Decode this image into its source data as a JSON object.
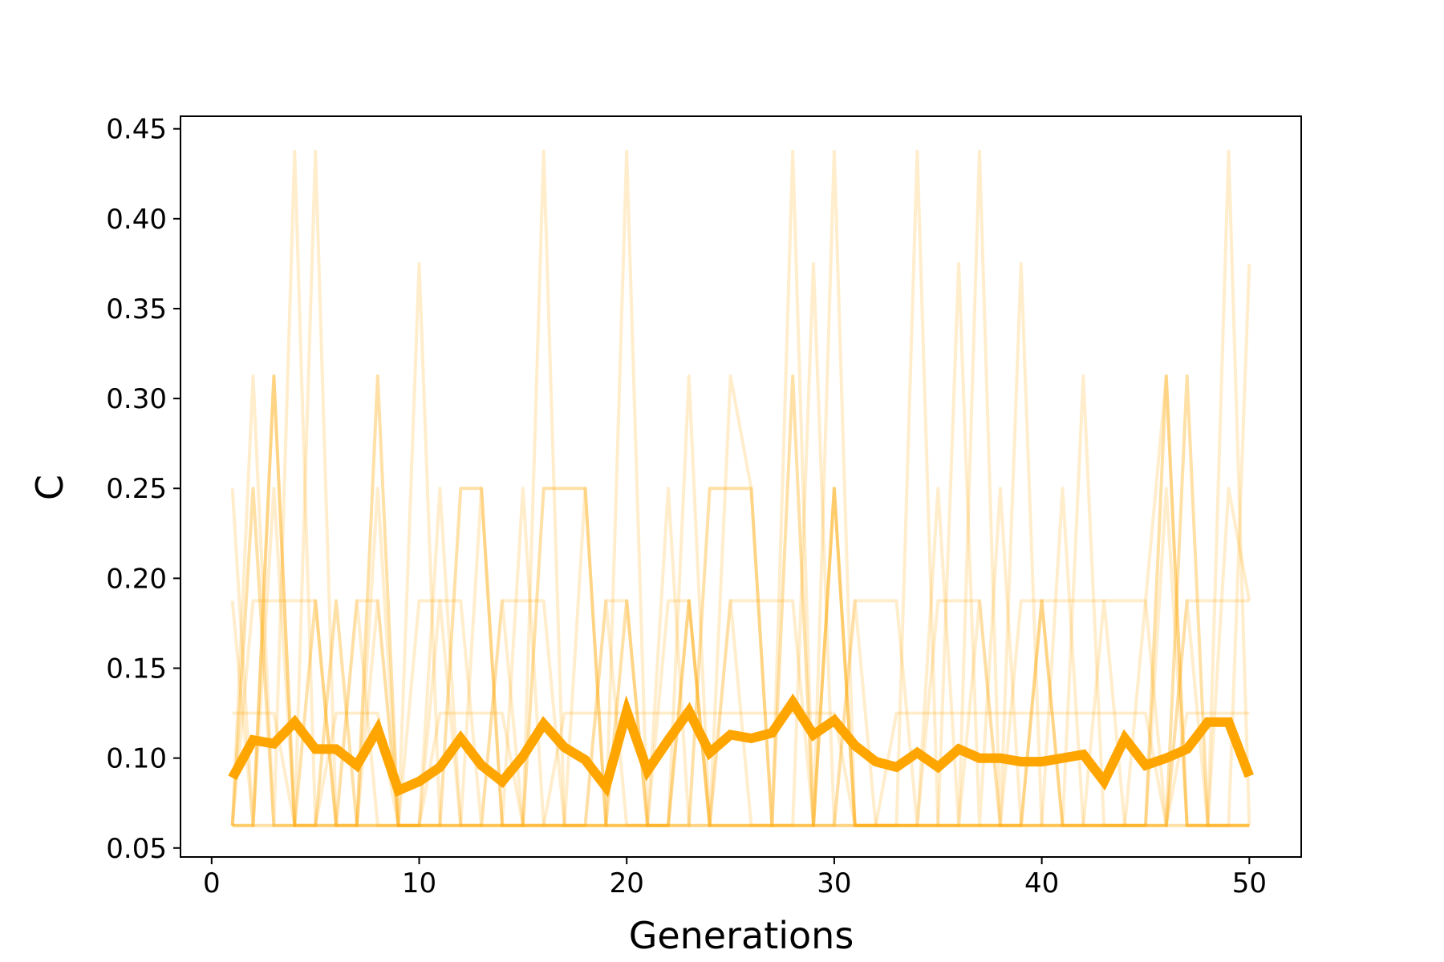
{
  "chart_data": {
    "type": "line",
    "title": "",
    "xlabel": "Generations",
    "ylabel": "C",
    "xlim": [
      -1.5,
      52.5
    ],
    "ylim": [
      0.045,
      0.457
    ],
    "x_ticks": [
      0,
      10,
      20,
      30,
      40,
      50
    ],
    "x_tick_labels": [
      "0",
      "10",
      "20",
      "30",
      "40",
      "50"
    ],
    "y_ticks": [
      0.05,
      0.1,
      0.15,
      0.2,
      0.25,
      0.3,
      0.35,
      0.4,
      0.45
    ],
    "y_tick_labels": [
      "0.05",
      "0.10",
      "0.15",
      "0.20",
      "0.25",
      "0.30",
      "0.35",
      "0.40",
      "0.45"
    ],
    "grid": false,
    "legend": false,
    "colors": {
      "series": "#ffa500",
      "axes": "#000000",
      "background": "#ffffff"
    },
    "x": [
      1,
      2,
      3,
      4,
      5,
      6,
      7,
      8,
      9,
      10,
      11,
      12,
      13,
      14,
      15,
      16,
      17,
      18,
      19,
      20,
      21,
      22,
      23,
      24,
      25,
      26,
      27,
      28,
      29,
      30,
      31,
      32,
      33,
      34,
      35,
      36,
      37,
      38,
      39,
      40,
      41,
      42,
      43,
      44,
      45,
      46,
      47,
      48,
      49,
      50
    ],
    "mean_series": {
      "values": [
        0.089,
        0.11,
        0.108,
        0.12,
        0.105,
        0.105,
        0.096,
        0.116,
        0.082,
        0.087,
        0.095,
        0.111,
        0.096,
        0.087,
        0.101,
        0.119,
        0.106,
        0.099,
        0.084,
        0.126,
        0.093,
        0.11,
        0.126,
        0.103,
        0.113,
        0.111,
        0.114,
        0.131,
        0.113,
        0.121,
        0.107,
        0.098,
        0.095,
        0.103,
        0.095,
        0.105,
        0.1,
        0.1,
        0.098,
        0.098,
        0.1,
        0.102,
        0.087,
        0.111,
        0.096,
        0.1,
        0.105,
        0.12,
        0.12,
        0.09
      ],
      "color": "#ffa500",
      "opacity": 1.0
    },
    "series": [
      {
        "opacity": 0.2,
        "values": [
          0.25,
          0.0625,
          0.3125,
          0.0625,
          0.4375,
          0.0625,
          0.0625,
          0.25,
          0.0625,
          0.375,
          0.0625,
          0.0625,
          0.25,
          0.0625,
          0.0625,
          0.4375,
          0.0625,
          0.0625,
          0.0625,
          0.4375,
          0.0625,
          0.0625,
          0.3125,
          0.0625,
          0.0625,
          0.0625,
          0.0625,
          0.4375,
          0.0625,
          0.4375,
          0.0625,
          0.0625,
          0.0625,
          0.4375,
          0.0625,
          0.0625,
          0.4375,
          0.0625,
          0.375,
          0.0625,
          0.0625,
          0.3125,
          0.0625,
          0.0625,
          0.0625,
          0.25,
          0.0625,
          0.0625,
          0.4375,
          0.0625
        ]
      },
      {
        "opacity": 0.2,
        "values": [
          0.0625,
          0.3125,
          0.0625,
          0.4375,
          0.0625,
          0.0625,
          0.1875,
          0.0625,
          0.0625,
          0.0625,
          0.25,
          0.0625,
          0.0625,
          0.0625,
          0.25,
          0.0625,
          0.0625,
          0.25,
          0.0625,
          0.0625,
          0.0625,
          0.25,
          0.0625,
          0.0625,
          0.3125,
          0.25,
          0.0625,
          0.0625,
          0.375,
          0.0625,
          0.0625,
          0.0625,
          0.0625,
          0.0625,
          0.0625,
          0.375,
          0.0625,
          0.25,
          0.0625,
          0.0625,
          0.25,
          0.0625,
          0.0625,
          0.0625,
          0.1875,
          0.3125,
          0.0625,
          0.0625,
          0.0625,
          0.375
        ]
      },
      {
        "opacity": 0.2,
        "values": [
          0.1875,
          0.0625,
          0.25,
          0.0625,
          0.0625,
          0.0625,
          0.0625,
          0.1875,
          0.0625,
          0.0625,
          0.1875,
          0.0625,
          0.0625,
          0.1875,
          0.0625,
          0.0625,
          0.0625,
          0.0625,
          0.1875,
          0.0625,
          0.0625,
          0.0625,
          0.1875,
          0.0625,
          0.1875,
          0.0625,
          0.0625,
          0.0625,
          0.0625,
          0.0625,
          0.1875,
          0.0625,
          0.0625,
          0.0625,
          0.25,
          0.0625,
          0.1875,
          0.0625,
          0.0625,
          0.1875,
          0.0625,
          0.0625,
          0.1875,
          0.0625,
          0.0625,
          0.0625,
          0.1875,
          0.0625,
          0.25,
          0.1875
        ]
      },
      {
        "opacity": 0.2,
        "values": [
          0.125,
          0.125,
          0.125,
          0.0625,
          0.0625,
          0.125,
          0.125,
          0.125,
          0.0625,
          0.0625,
          0.125,
          0.125,
          0.125,
          0.125,
          0.0625,
          0.0625,
          0.125,
          0.125,
          0.125,
          0.125,
          0.125,
          0.125,
          0.125,
          0.125,
          0.125,
          0.125,
          0.125,
          0.125,
          0.125,
          0.125,
          0.0625,
          0.0625,
          0.125,
          0.125,
          0.125,
          0.125,
          0.125,
          0.125,
          0.125,
          0.125,
          0.125,
          0.125,
          0.125,
          0.125,
          0.125,
          0.0625,
          0.125,
          0.125,
          0.125,
          0.125
        ]
      },
      {
        "opacity": 0.2,
        "values": [
          0.0625,
          0.1875,
          0.1875,
          0.1875,
          0.1875,
          0.0625,
          0.1875,
          0.1875,
          0.0625,
          0.1875,
          0.1875,
          0.1875,
          0.0625,
          0.1875,
          0.1875,
          0.1875,
          0.0625,
          0.0625,
          0.1875,
          0.1875,
          0.0625,
          0.1875,
          0.1875,
          0.0625,
          0.1875,
          0.1875,
          0.1875,
          0.1875,
          0.0625,
          0.0625,
          0.1875,
          0.1875,
          0.1875,
          0.0625,
          0.1875,
          0.1875,
          0.1875,
          0.0625,
          0.1875,
          0.1875,
          0.1875,
          0.1875,
          0.1875,
          0.1875,
          0.1875,
          0.0625,
          0.1875,
          0.1875,
          0.1875,
          0.1875
        ]
      },
      {
        "opacity": 0.35,
        "values": [
          0.0625,
          0.25,
          0.0625,
          0.0625,
          0.1875,
          0.0625,
          0.0625,
          0.3125,
          0.0625,
          0.0625,
          0.0625,
          0.25,
          0.25,
          0.0625,
          0.0625,
          0.25,
          0.25,
          0.25,
          0.0625,
          0.0625,
          0.0625,
          0.0625,
          0.0625,
          0.25,
          0.25,
          0.25,
          0.0625,
          0.3125,
          0.0625,
          0.25,
          0.0625,
          0.0625,
          0.0625,
          0.0625,
          0.0625,
          0.0625,
          0.0625,
          0.0625,
          0.0625,
          0.0625,
          0.0625,
          0.0625,
          0.0625,
          0.0625,
          0.0625,
          0.3125,
          0.0625,
          0.0625,
          0.0625,
          0.0625
        ]
      },
      {
        "opacity": 0.35,
        "values": [
          0.0625,
          0.0625,
          0.3125,
          0.0625,
          0.0625,
          0.1875,
          0.0625,
          0.0625,
          0.0625,
          0.0625,
          0.0625,
          0.0625,
          0.0625,
          0.0625,
          0.0625,
          0.0625,
          0.0625,
          0.0625,
          0.0625,
          0.1875,
          0.0625,
          0.0625,
          0.1875,
          0.0625,
          0.0625,
          0.0625,
          0.0625,
          0.0625,
          0.0625,
          0.25,
          0.0625,
          0.0625,
          0.0625,
          0.0625,
          0.0625,
          0.0625,
          0.0625,
          0.0625,
          0.0625,
          0.1875,
          0.0625,
          0.0625,
          0.0625,
          0.0625,
          0.0625,
          0.0625,
          0.3125,
          0.0625,
          0.0625,
          0.0625
        ]
      },
      {
        "opacity": 0.35,
        "values": [
          0.0625,
          0.0625,
          0.0625,
          0.0625,
          0.0625,
          0.0625,
          0.0625,
          0.0625,
          0.0625,
          0.0625,
          0.0625,
          0.0625,
          0.0625,
          0.0625,
          0.0625,
          0.0625,
          0.0625,
          0.0625,
          0.0625,
          0.0625,
          0.0625,
          0.0625,
          0.0625,
          0.0625,
          0.0625,
          0.0625,
          0.0625,
          0.0625,
          0.0625,
          0.0625,
          0.0625,
          0.0625,
          0.0625,
          0.0625,
          0.0625,
          0.0625,
          0.0625,
          0.0625,
          0.0625,
          0.0625,
          0.0625,
          0.0625,
          0.0625,
          0.0625,
          0.0625,
          0.0625,
          0.0625,
          0.0625,
          0.0625,
          0.0625
        ]
      }
    ]
  }
}
